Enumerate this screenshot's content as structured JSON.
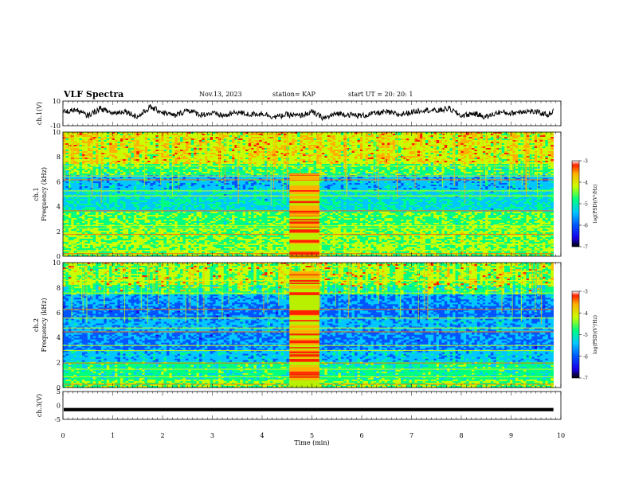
{
  "header": {
    "title": "VLF Spectra",
    "date": "Nov.13, 2023",
    "station": "station= KAP",
    "start": "start UT =   20: 20: 1"
  },
  "colors": {
    "colormap": [
      "#000000",
      "#1a00e6",
      "#0055ff",
      "#00c8ff",
      "#00ff80",
      "#c8ff00",
      "#ffb000",
      "#ff2000",
      "#ffffff"
    ]
  },
  "chart_data": [
    {
      "type": "line",
      "panel": "ch1-waveform",
      "ylabel": "ch.1(V)",
      "ylim": [
        -10,
        10
      ],
      "y_ticks": [
        "10",
        "-10"
      ],
      "xlim": [
        0,
        10
      ],
      "x": [
        0,
        0.25,
        0.5,
        0.75,
        1,
        1.25,
        1.5,
        1.75,
        2,
        2.25,
        2.5,
        2.75,
        3,
        3.25,
        3.5,
        3.75,
        4,
        4.25,
        4.5,
        4.75,
        5,
        5.25,
        5.5,
        5.75,
        6,
        6.25,
        6.5,
        6.75,
        7,
        7.25,
        7.5,
        7.75,
        8,
        8.25,
        8.5,
        8.75,
        9,
        9.25,
        9.5,
        9.75,
        9.85
      ],
      "values": [
        1,
        3,
        -2,
        4,
        0,
        2,
        -3,
        5,
        1,
        -2,
        3,
        -1,
        0,
        -2,
        1,
        -1,
        0,
        -3,
        -1,
        -2,
        1,
        -4,
        0,
        -1,
        -2,
        0,
        1,
        -1,
        1,
        3,
        2,
        4,
        -2,
        0,
        -3,
        1,
        0,
        2,
        1,
        -1,
        2
      ],
      "description_missing": ""
    },
    {
      "type": "heatmap",
      "panel": "ch1-spectrogram",
      "ylabel": "ch.1\nFrequency (kHz)",
      "xlim": [
        0,
        10
      ],
      "ylim": [
        0,
        10
      ],
      "y_ticks": [
        "0",
        "2",
        "4",
        "6",
        "8",
        "10"
      ],
      "colorbar": {
        "label": "log(PSD)(V²/Hz)",
        "ticks": [
          "-3",
          "-4",
          "-5",
          "-6",
          "-7"
        ],
        "range": [
          -7,
          -3
        ]
      },
      "burst_interval_min": [
        4.55,
        5.15
      ],
      "burst_band_kHz": [
        0,
        6.7
      ]
    },
    {
      "type": "heatmap",
      "panel": "ch2-spectrogram",
      "ylabel": "ch.2\nFrequency (kHz)",
      "xlim": [
        0,
        10
      ],
      "ylim": [
        0,
        10
      ],
      "y_ticks": [
        "0",
        "2",
        "4",
        "6",
        "8",
        "10"
      ],
      "colorbar": {
        "label": "log(PSD)(V²/Hz)",
        "ticks": [
          "-3",
          "-4",
          "-5",
          "-6",
          "-7"
        ],
        "range": [
          -7,
          -3
        ]
      },
      "burst_interval_min": [
        4.55,
        5.15
      ],
      "burst_band_kHz": [
        0,
        9.3
      ]
    },
    {
      "type": "line",
      "panel": "ch3-waveform",
      "ylabel": "ch.3(V)",
      "ylim": [
        -5,
        5
      ],
      "y_ticks": [
        "5",
        "0",
        "-5"
      ],
      "xlim": [
        0,
        10
      ],
      "x": [
        0,
        9.85
      ],
      "values": [
        -1.5,
        -1.5
      ],
      "xlabel": "Time (min)",
      "x_ticks": [
        "0",
        "1",
        "2",
        "3",
        "4",
        "5",
        "6",
        "7",
        "8",
        "9",
        "10"
      ]
    }
  ]
}
